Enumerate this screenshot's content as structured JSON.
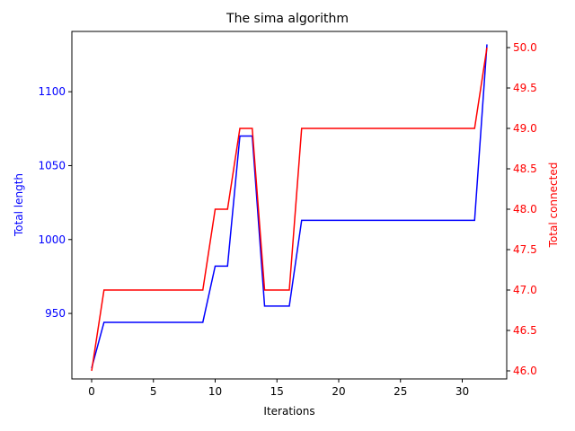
{
  "chart_data": {
    "type": "line",
    "title": "The sima algorithm",
    "xlabel": "Iterations",
    "ylabel_left": "Total length",
    "ylabel_right": "Total connected",
    "xlim": [
      -1.6,
      33.6
    ],
    "ylim_left": [
      905.7,
      1140.8
    ],
    "ylim_right": [
      45.9,
      50.2
    ],
    "x_ticks": [
      0,
      5,
      10,
      15,
      20,
      25,
      30
    ],
    "y_ticks_left": [
      950,
      1000,
      1050,
      1100
    ],
    "y_ticks_right": [
      46.0,
      46.5,
      47.0,
      47.5,
      48.0,
      48.5,
      49.0,
      49.5,
      50.0
    ],
    "y_tick_labels_right": [
      "46.0",
      "46.5",
      "47.0",
      "47.5",
      "48.0",
      "48.5",
      "49.0",
      "49.5",
      "50.0"
    ],
    "colors": {
      "left": "#0000ff",
      "right": "#ff0000"
    },
    "grid": false,
    "x": [
      0,
      1,
      2,
      3,
      4,
      5,
      6,
      7,
      8,
      9,
      10,
      11,
      12,
      13,
      14,
      15,
      16,
      17,
      18,
      19,
      20,
      21,
      22,
      23,
      24,
      25,
      26,
      27,
      28,
      29,
      30,
      31,
      32
    ],
    "series": [
      {
        "axis": "left",
        "values": [
          913,
          944,
          944,
          944,
          944,
          944,
          944,
          944,
          944,
          944,
          982,
          982,
          1070,
          1070,
          955,
          955,
          955,
          1013,
          1013,
          1013,
          1013,
          1013,
          1013,
          1013,
          1013,
          1013,
          1013,
          1013,
          1013,
          1013,
          1013,
          1013,
          1132
        ]
      },
      {
        "axis": "right",
        "values": [
          46,
          47,
          47,
          47,
          47,
          47,
          47,
          47,
          47,
          47,
          48,
          48,
          49,
          49,
          47,
          47,
          47,
          49,
          49,
          49,
          49,
          49,
          49,
          49,
          49,
          49,
          49,
          49,
          49,
          49,
          49,
          49,
          50
        ]
      }
    ]
  }
}
